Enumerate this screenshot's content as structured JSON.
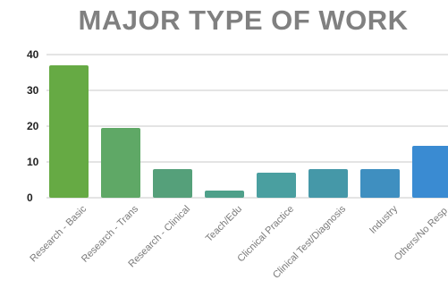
{
  "chart_data": {
    "type": "bar",
    "title": "MAJOR TYPE OF WORK",
    "xlabel": "",
    "ylabel": "",
    "ylim": [
      0,
      40
    ],
    "yticks": [
      0,
      10,
      20,
      30,
      40
    ],
    "grid": true,
    "categories": [
      "Research - Basic",
      "Research - Trans",
      "Research - Clinical",
      "Teach/Edu",
      "Clicnical Practice",
      "Clinical Test/Diagnosis",
      "Industry",
      "Others/No Resp."
    ],
    "values": [
      37,
      19.5,
      8,
      2,
      7,
      8,
      8,
      14.5
    ],
    "colors": [
      "#66aa44",
      "#5fa866",
      "#55a07a",
      "#4fa08a",
      "#4a9fa0",
      "#4598a8",
      "#3f8fc0",
      "#3a8bd2"
    ]
  }
}
